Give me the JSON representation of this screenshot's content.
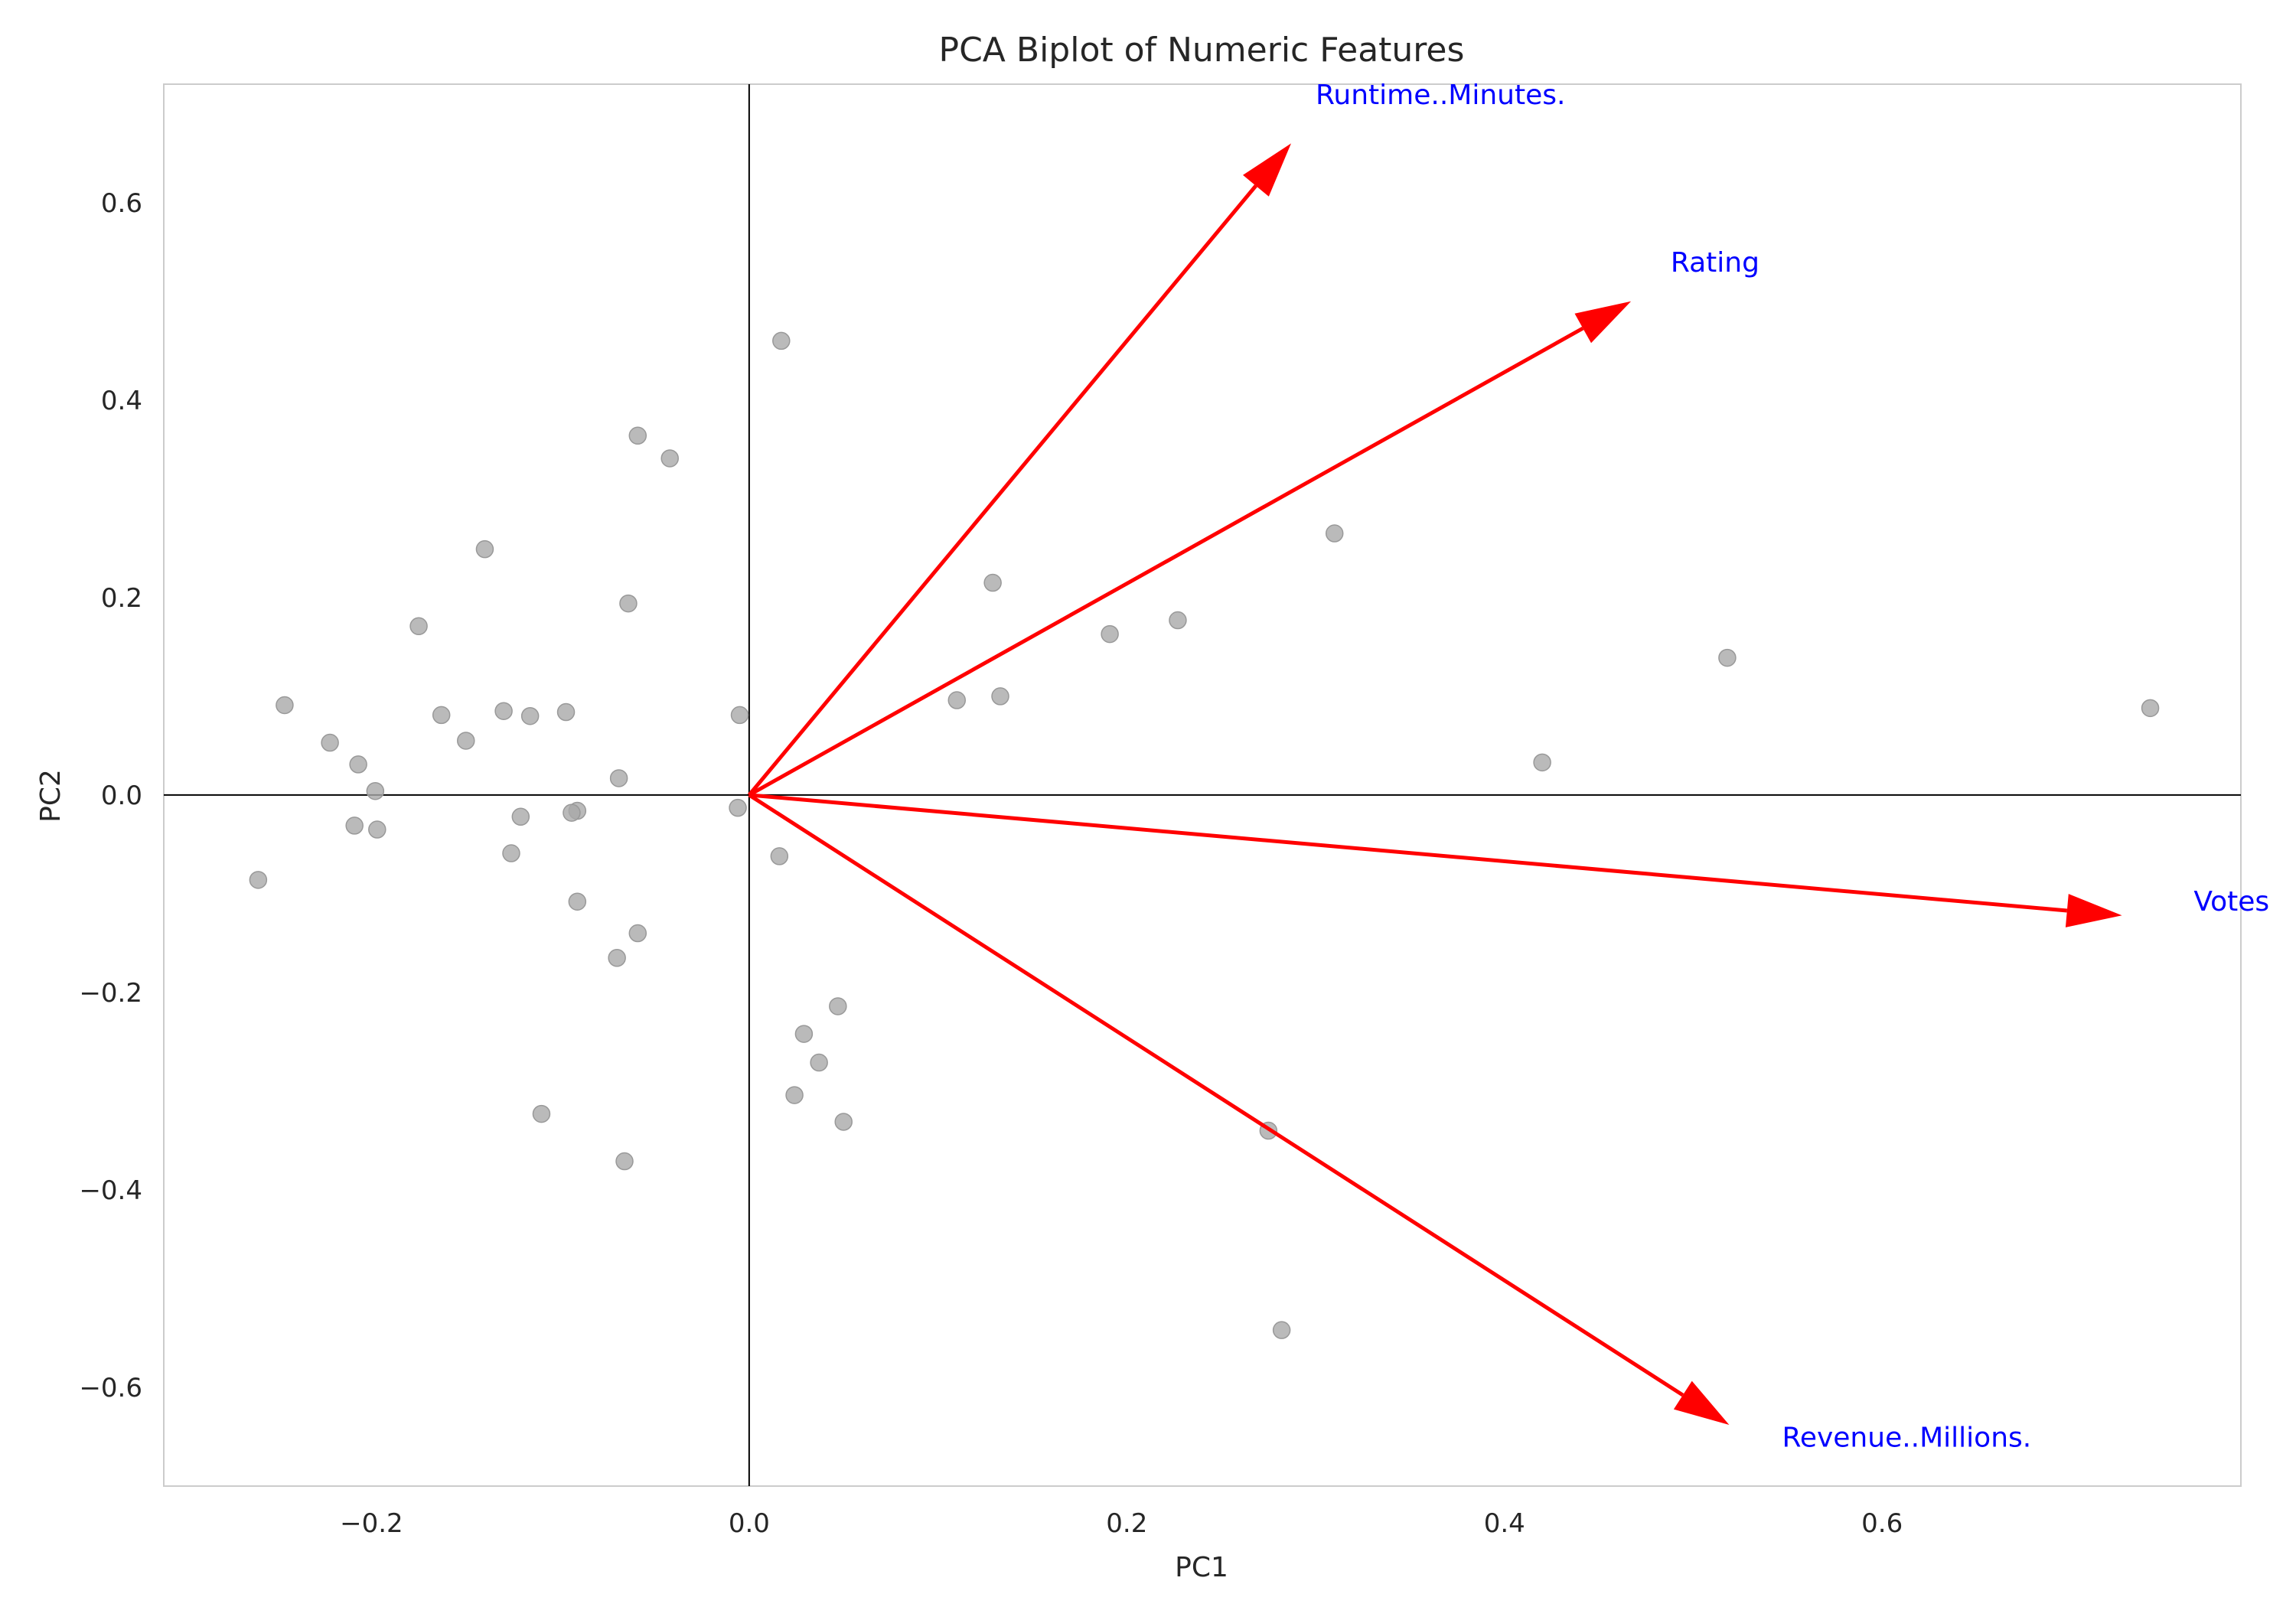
{
  "chart_data": {
    "type": "scatter",
    "title": "PCA Biplot of Numeric Features",
    "xlabel": "PC1",
    "ylabel": "PC2",
    "xlim": [
      -0.31,
      0.79
    ],
    "ylim": [
      -0.7,
      0.72
    ],
    "xticks": [
      -0.2,
      0.0,
      0.2,
      0.4,
      0.6
    ],
    "xtick_labels": [
      "−0.2",
      "0.0",
      "0.2",
      "0.4",
      "0.6"
    ],
    "yticks": [
      -0.6,
      -0.4,
      -0.2,
      0.0,
      0.2,
      0.4,
      0.6
    ],
    "ytick_labels": [
      "−0.6",
      "−0.4",
      "−0.2",
      "0.0",
      "0.2",
      "0.4",
      "0.6"
    ],
    "grid": false,
    "colors": {
      "points": "#a9a9a9",
      "arrows": "#ff0000",
      "vector_labels": "#0000ff",
      "axes_lines": "#000000",
      "frame": "#cccccc"
    },
    "points": [
      {
        "x": 0.017,
        "y": 0.46
      },
      {
        "x": -0.059,
        "y": 0.364
      },
      {
        "x": -0.042,
        "y": 0.341
      },
      {
        "x": -0.14,
        "y": 0.249
      },
      {
        "x": 0.31,
        "y": 0.265
      },
      {
        "x": 0.129,
        "y": 0.215
      },
      {
        "x": -0.064,
        "y": 0.194
      },
      {
        "x": -0.175,
        "y": 0.171
      },
      {
        "x": 0.191,
        "y": 0.163
      },
      {
        "x": 0.227,
        "y": 0.177
      },
      {
        "x": 0.518,
        "y": 0.139
      },
      {
        "x": 0.11,
        "y": 0.096
      },
      {
        "x": 0.133,
        "y": 0.1
      },
      {
        "x": -0.246,
        "y": 0.091
      },
      {
        "x": -0.163,
        "y": 0.081
      },
      {
        "x": -0.13,
        "y": 0.085
      },
      {
        "x": -0.116,
        "y": 0.08
      },
      {
        "x": -0.097,
        "y": 0.084
      },
      {
        "x": -0.005,
        "y": 0.081
      },
      {
        "x": 0.742,
        "y": 0.088
      },
      {
        "x": -0.222,
        "y": 0.053
      },
      {
        "x": -0.15,
        "y": 0.055
      },
      {
        "x": -0.207,
        "y": 0.031
      },
      {
        "x": 0.42,
        "y": 0.033
      },
      {
        "x": -0.069,
        "y": 0.017
      },
      {
        "x": -0.198,
        "y": 0.004
      },
      {
        "x": -0.006,
        "y": -0.013
      },
      {
        "x": -0.091,
        "y": -0.016
      },
      {
        "x": -0.094,
        "y": -0.018
      },
      {
        "x": -0.121,
        "y": -0.022
      },
      {
        "x": -0.209,
        "y": -0.031
      },
      {
        "x": -0.197,
        "y": -0.035
      },
      {
        "x": 0.016,
        "y": -0.062
      },
      {
        "x": -0.126,
        "y": -0.059
      },
      {
        "x": -0.26,
        "y": -0.086
      },
      {
        "x": -0.091,
        "y": -0.108
      },
      {
        "x": -0.059,
        "y": -0.14
      },
      {
        "x": -0.07,
        "y": -0.165
      },
      {
        "x": 0.047,
        "y": -0.214
      },
      {
        "x": 0.029,
        "y": -0.242
      },
      {
        "x": 0.037,
        "y": -0.271
      },
      {
        "x": 0.024,
        "y": -0.304
      },
      {
        "x": -0.11,
        "y": -0.323
      },
      {
        "x": 0.05,
        "y": -0.331
      },
      {
        "x": 0.275,
        "y": -0.34
      },
      {
        "x": -0.066,
        "y": -0.371
      },
      {
        "x": 0.282,
        "y": -0.542
      }
    ],
    "vectors": [
      {
        "label": "Runtime..Minutes.",
        "x": 0.287,
        "y": 0.66,
        "label_x": 0.3,
        "label_y": 0.7,
        "label_anchor": "start"
      },
      {
        "label": "Rating",
        "x": 0.467,
        "y": 0.5,
        "label_x": 0.488,
        "label_y": 0.53,
        "label_anchor": "start"
      },
      {
        "label": "Votes",
        "x": 0.727,
        "y": -0.122,
        "label_x": 0.765,
        "label_y": -0.117,
        "label_anchor": "start"
      },
      {
        "label": "Revenue..Millions.",
        "x": 0.519,
        "y": -0.638,
        "label_x": 0.547,
        "label_y": -0.66,
        "label_anchor": "start"
      }
    ]
  }
}
